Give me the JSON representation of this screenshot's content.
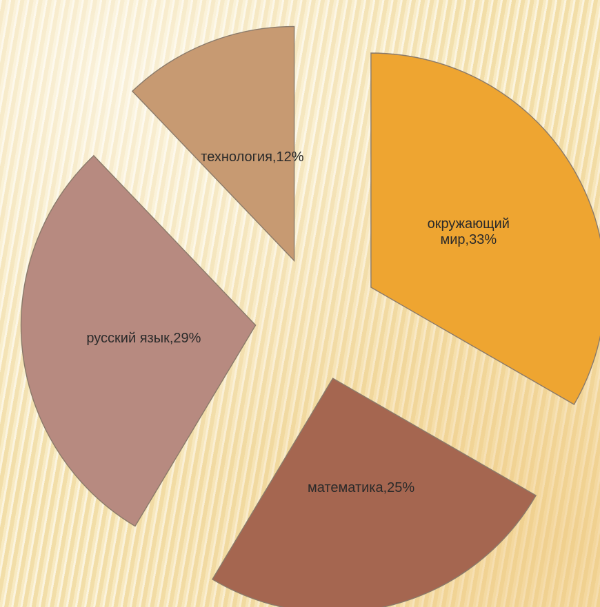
{
  "chart_data": {
    "type": "pie",
    "exploded": true,
    "labels_inside": true,
    "slices": [
      {
        "category": "окружающий мир",
        "value": 33,
        "label_lines": [
          "окружающий",
          "мир,33%"
        ],
        "color": "#eea531"
      },
      {
        "category": "математика",
        "value": 25,
        "label_lines": [
          "математика,25%"
        ],
        "color": "#a56650"
      },
      {
        "category": "русский язык",
        "value": 29,
        "label_lines": [
          "русский язык,29%"
        ],
        "color": "#b78a80"
      },
      {
        "category": "технология",
        "value": 12,
        "label_lines": [
          "технология,12%"
        ],
        "color": "#c79a72"
      }
    ]
  }
}
